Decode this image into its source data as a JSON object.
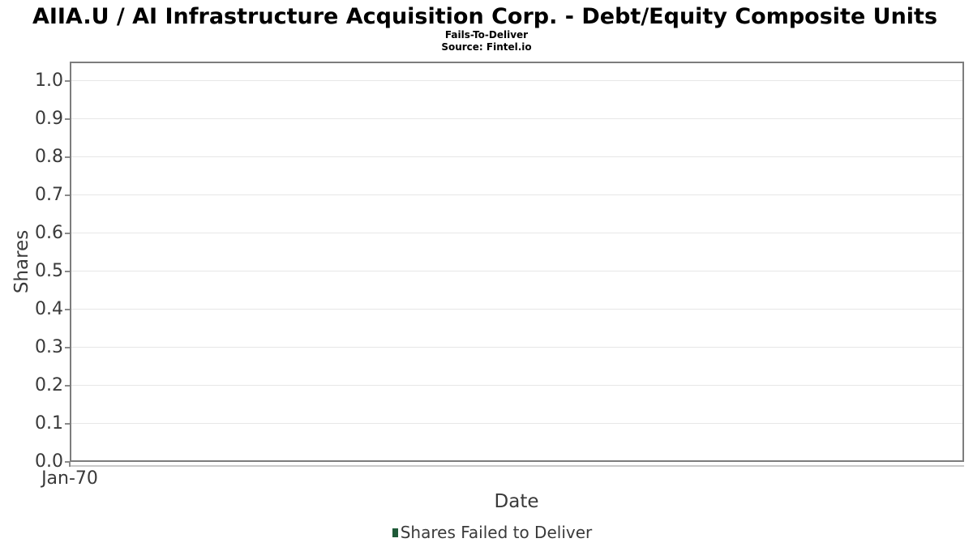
{
  "header": {
    "title": "AIIA.U / AI Infrastructure Acquisition Corp. - Debt/Equity Composite Units",
    "subtitle": "Fails-To-Deliver",
    "source": "Source: Fintel.io"
  },
  "legend": {
    "items": [
      {
        "label": "Shares Failed to Deliver",
        "color": "#1f5a38"
      }
    ]
  },
  "style": {
    "grid_color": "#e7e7e7",
    "border_color": "#7d7d7d",
    "axisline_color": "#c9c9c9",
    "tick_color": "#8a8a8a",
    "text_color": "#3a3a3a",
    "title_color": "#000000",
    "legend_marker_color": "#1f5a38",
    "background_color": "#ffffff"
  },
  "chart_data": {
    "type": "bar",
    "title": "AIIA.U / AI Infrastructure Acquisition Corp. - Debt/Equity Composite Units",
    "subtitle": "Fails-To-Deliver",
    "source": "Source: Fintel.io",
    "xlabel": "Date",
    "ylabel": "Shares",
    "x_tick_labels": [
      "Jan-70"
    ],
    "y_tick_labels": [
      "0.0",
      "0.1",
      "0.2",
      "0.3",
      "0.4",
      "0.5",
      "0.6",
      "0.7",
      "0.8",
      "0.9",
      "1.0"
    ],
    "ylim": [
      0,
      1.05
    ],
    "grid": true,
    "legend_position": "bottom",
    "series": [
      {
        "name": "Shares Failed to Deliver",
        "color": "#1f5a38",
        "values": []
      }
    ]
  }
}
